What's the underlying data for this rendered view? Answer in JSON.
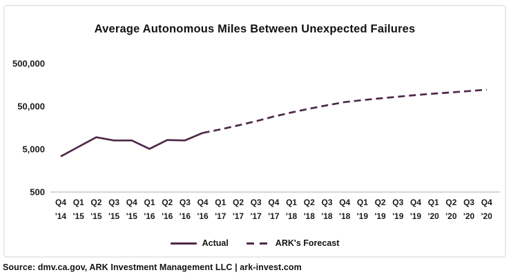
{
  "title": "Average Autonomous Miles Between Unexpected Failures",
  "source_line": "Source: dmv.ca.gov, ARK Investment Management LLC | ark-invest.com",
  "colors": {
    "line": "#4e2848",
    "grid": "#c9c9c9",
    "text": "#121212",
    "border": "#e9e9e9"
  },
  "legend": [
    {
      "label": "Actual",
      "style": "solid"
    },
    {
      "label": "ARK's Forecast",
      "style": "dashed"
    }
  ],
  "chart_data": {
    "type": "line",
    "title": "Average Autonomous Miles Between Unexpected Failures",
    "xlabel": "",
    "ylabel": "",
    "y_axis": {
      "scale": "log",
      "range": [
        500,
        500000
      ],
      "ticks": [
        500,
        5000,
        50000,
        500000
      ],
      "tick_labels": [
        "500",
        "5,000",
        "50,000",
        "500,000"
      ],
      "grid": "baseline-only"
    },
    "x_axis": {
      "quarters": [
        "Q4",
        "Q1",
        "Q2",
        "Q3",
        "Q4",
        "Q1",
        "Q2",
        "Q3",
        "Q4",
        "Q1",
        "Q2",
        "Q3",
        "Q4",
        "Q1",
        "Q2",
        "Q3",
        "Q4",
        "Q1",
        "Q2",
        "Q3",
        "Q4",
        "Q1",
        "Q2",
        "Q3",
        "Q4"
      ],
      "years": [
        "'14",
        "'15",
        "'15",
        "'15",
        "'15",
        "'16",
        "'16",
        "'16",
        "'16",
        "'17",
        "'17",
        "'17",
        "'17",
        "'18",
        "'18",
        "'18",
        "'18",
        "'19",
        "'19",
        "'19",
        "'19",
        "'20",
        "'20",
        "'20",
        "'20"
      ]
    },
    "series": [
      {
        "name": "Actual",
        "style": "solid",
        "x_start_index": 0,
        "values": [
          3400,
          5700,
          9500,
          8000,
          8000,
          5100,
          8200,
          8000,
          12000
        ]
      },
      {
        "name": "ARK's Forecast",
        "style": "dashed",
        "x_start_index": 8,
        "values": [
          12000,
          14500,
          18000,
          22500,
          29000,
          36000,
          44000,
          53000,
          63000,
          70000,
          77000,
          84000,
          92000,
          99000,
          106000,
          114000,
          123000
        ]
      }
    ],
    "legend_position": "bottom-center"
  }
}
